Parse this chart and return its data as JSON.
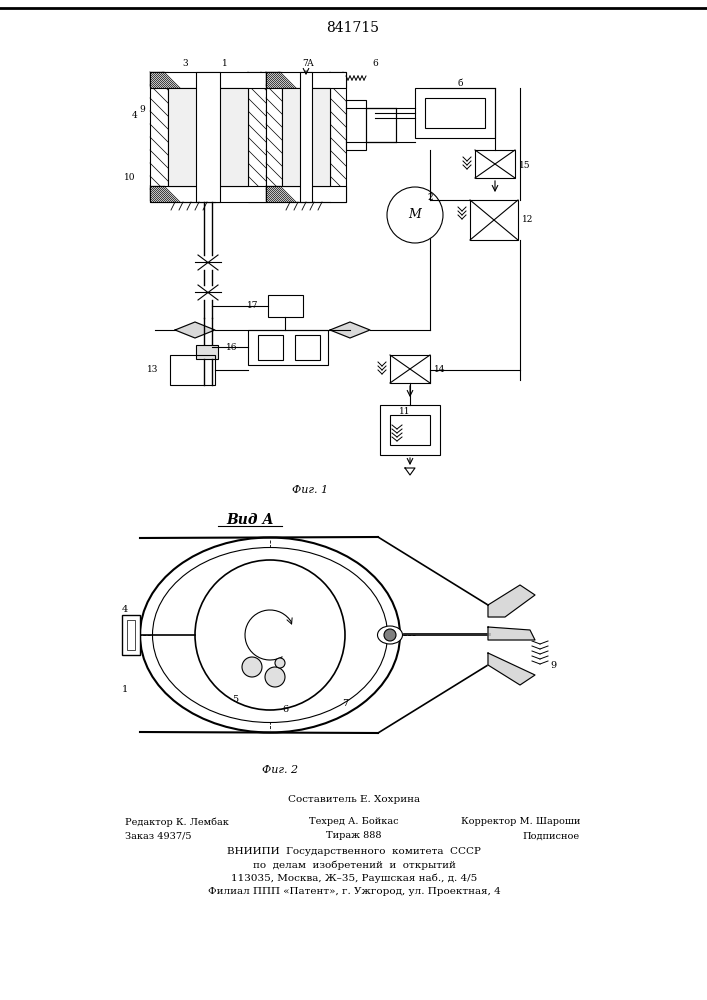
{
  "patent_number": "841715",
  "fig1_caption": "Фиг. 1",
  "fig2_caption": "Фиг. 2",
  "view_label": "Вид А",
  "footer_line1": "Составитель Е. Хохрина",
  "footer_line2_left": "Редактор К. Лембак",
  "footer_line2_mid": "Техред А. Бойкас",
  "footer_line2_right": "Корректор М. Шароши",
  "footer_line3_left": "Заказ 4937/5",
  "footer_line3_mid": "Тираж 888",
  "footer_line3_right": "Подписное",
  "footer_line4": "ВНИИПИ  Государственного  комитета  СССР",
  "footer_line5": "по  делам  изобретений  и  открытий",
  "footer_line6": "113035, Москва, Ж–35, Раушская наб., д. 4/5",
  "footer_line7": "Филиал ППП «Патент», г. Ужгород, ул. Проектная, 4",
  "bg_color": "#ffffff",
  "line_color": "#000000"
}
